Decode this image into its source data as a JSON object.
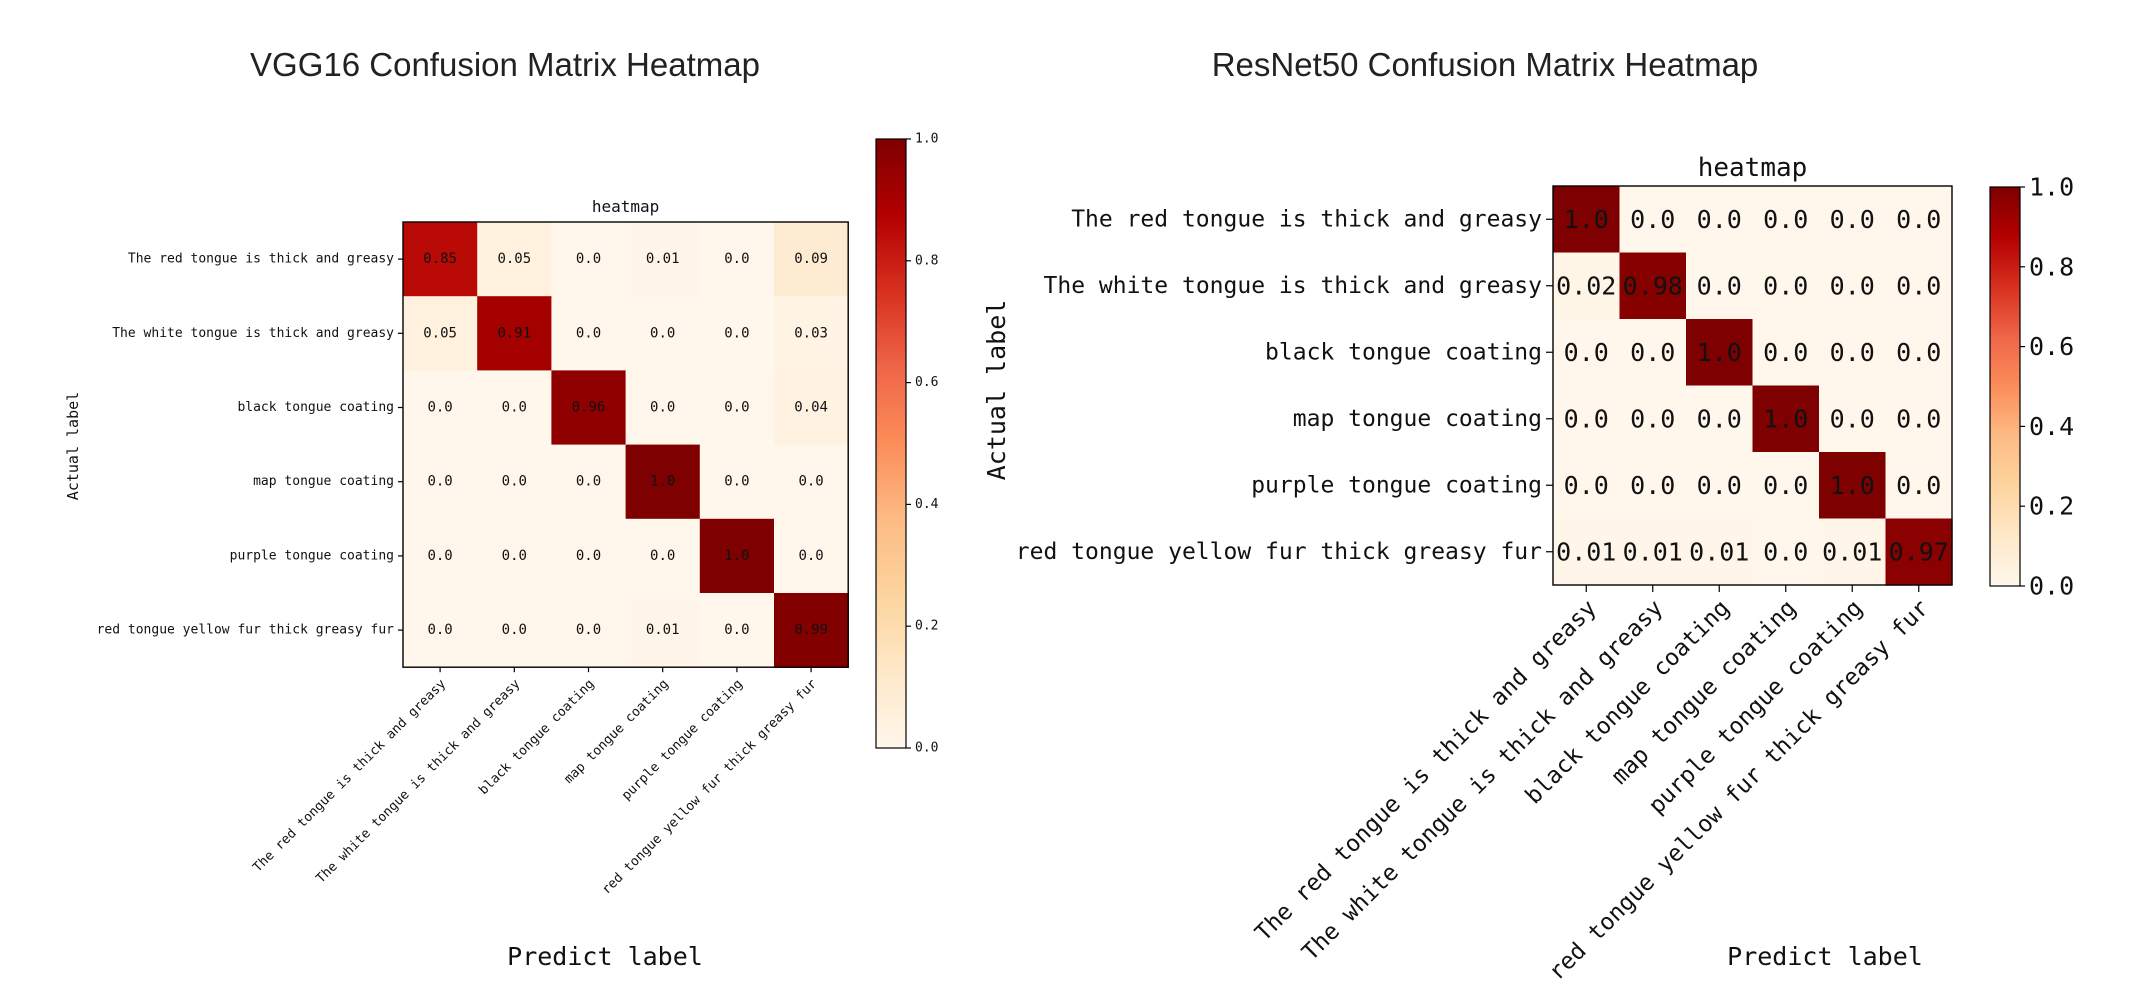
{
  "chart_data": [
    {
      "type": "heatmap",
      "title": "VGG16 Confusion Matrix Heatmap",
      "subtitle": "heatmap",
      "xlabel": "Predict label",
      "ylabel": "Actual label",
      "categories": [
        "The red tongue is thick and greasy",
        "The white tongue is thick and greasy",
        "black tongue coating",
        "map tongue coating",
        "purple tongue coating",
        "red tongue yellow fur thick greasy fur"
      ],
      "values": [
        [
          0.85,
          0.05,
          0.0,
          0.01,
          0.0,
          0.09
        ],
        [
          0.05,
          0.91,
          0.0,
          0.0,
          0.0,
          0.03
        ],
        [
          0.0,
          0.0,
          0.96,
          0.0,
          0.0,
          0.04
        ],
        [
          0.0,
          0.0,
          0.0,
          1.0,
          0.0,
          0.0
        ],
        [
          0.0,
          0.0,
          0.0,
          0.0,
          1.0,
          0.0
        ],
        [
          0.0,
          0.0,
          0.0,
          0.01,
          0.0,
          0.99
        ]
      ],
      "cell_labels": [
        [
          "0.85",
          "0.05",
          "0.0",
          "0.01",
          "0.0",
          "0.09"
        ],
        [
          "0.05",
          "0.91",
          "0.0",
          "0.0",
          "0.0",
          "0.03"
        ],
        [
          "0.0",
          "0.0",
          "0.96",
          "0.0",
          "0.0",
          "0.04"
        ],
        [
          "0.0",
          "0.0",
          "0.0",
          "1.0",
          "0.0",
          "0.0"
        ],
        [
          "0.0",
          "0.0",
          "0.0",
          "0.0",
          "1.0",
          "0.0"
        ],
        [
          "0.0",
          "0.0",
          "0.0",
          "0.01",
          "0.0",
          "0.99"
        ]
      ],
      "colorbar": {
        "range": [
          0.0,
          1.0
        ],
        "ticks": [
          0.0,
          0.2,
          0.4,
          0.6,
          0.8,
          1.0
        ],
        "tick_labels": [
          "0.0",
          "0.2",
          "0.4",
          "0.6",
          "0.8",
          "1.0"
        ]
      },
      "colormap": "OrRd"
    },
    {
      "type": "heatmap",
      "title": "ResNet50 Confusion Matrix Heatmap",
      "subtitle": "heatmap",
      "xlabel": "Predict label",
      "ylabel": "Actual label",
      "categories": [
        "The red tongue is thick and greasy",
        "The white tongue is thick and greasy",
        "black tongue coating",
        "map tongue coating",
        "purple tongue coating",
        "red tongue yellow fur thick greasy fur"
      ],
      "values": [
        [
          1.0,
          0.0,
          0.0,
          0.0,
          0.0,
          0.0
        ],
        [
          0.02,
          0.98,
          0.0,
          0.0,
          0.0,
          0.0
        ],
        [
          0.0,
          0.0,
          1.0,
          0.0,
          0.0,
          0.0
        ],
        [
          0.0,
          0.0,
          0.0,
          1.0,
          0.0,
          0.0
        ],
        [
          0.0,
          0.0,
          0.0,
          0.0,
          1.0,
          0.0
        ],
        [
          0.01,
          0.01,
          0.01,
          0.0,
          0.01,
          0.97
        ]
      ],
      "cell_labels": [
        [
          "1.0",
          "0.0",
          "0.0",
          "0.0",
          "0.0",
          "0.0"
        ],
        [
          "0.02",
          "0.98",
          "0.0",
          "0.0",
          "0.0",
          "0.0"
        ],
        [
          "0.0",
          "0.0",
          "1.0",
          "0.0",
          "0.0",
          "0.0"
        ],
        [
          "0.0",
          "0.0",
          "0.0",
          "1.0",
          "0.0",
          "0.0"
        ],
        [
          "0.0",
          "0.0",
          "0.0",
          "0.0",
          "1.0",
          "0.0"
        ],
        [
          "0.01",
          "0.01",
          "0.01",
          "0.0",
          "0.01",
          "0.97"
        ]
      ],
      "colorbar": {
        "range": [
          0.0,
          1.0
        ],
        "ticks": [
          0.0,
          0.2,
          0.4,
          0.6,
          0.8,
          1.0
        ],
        "tick_labels": [
          "0.0",
          "0.2",
          "0.4",
          "0.6",
          "0.8",
          "1.0"
        ]
      },
      "colormap": "OrRd"
    }
  ]
}
